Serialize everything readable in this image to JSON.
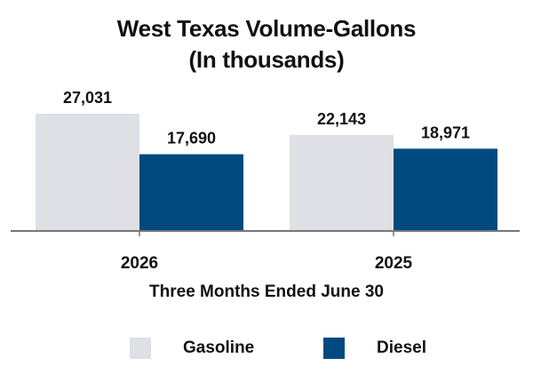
{
  "chart_data": {
    "type": "bar",
    "title": "West Texas Volume-Gallons",
    "subtitle": "(In thousands)",
    "xlabel": "Three Months Ended June 30",
    "categories": [
      "2026",
      "2025"
    ],
    "series": [
      {
        "name": "Gasoline",
        "color": "#dfe0e6",
        "values": [
          27031,
          22143
        ],
        "labels": [
          "27,031",
          "22,143"
        ]
      },
      {
        "name": "Diesel",
        "color": "#004a7f",
        "values": [
          17690,
          18971
        ],
        "labels": [
          "17,690",
          "18,971"
        ]
      }
    ],
    "ylim": [
      0,
      27031
    ],
    "grid": false,
    "legend": "bottom"
  }
}
